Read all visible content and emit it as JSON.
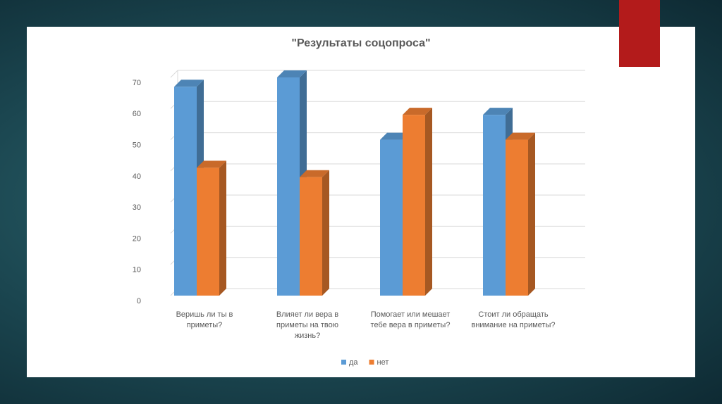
{
  "chart_data": {
    "type": "bar",
    "title": "\"Результаты соцопроса\"",
    "categories": [
      "Веришь ли ты в приметы?",
      "Влияет ли вера в приметы на твою жизнь?",
      "Помогает или мешает тебе вера в приметы?",
      "Стоит ли обращать внимание на приметы?"
    ],
    "series": [
      {
        "name": "да",
        "color": "#5b9bd5",
        "values": [
          67,
          70,
          50,
          58
        ]
      },
      {
        "name": "нет",
        "color": "#ed7d31",
        "values": [
          41,
          38,
          58,
          50
        ]
      }
    ],
    "ylim": [
      0,
      70
    ],
    "yticks": [
      0,
      10,
      20,
      30,
      40,
      50,
      60,
      70
    ],
    "grid": true,
    "legend": "bottom"
  }
}
